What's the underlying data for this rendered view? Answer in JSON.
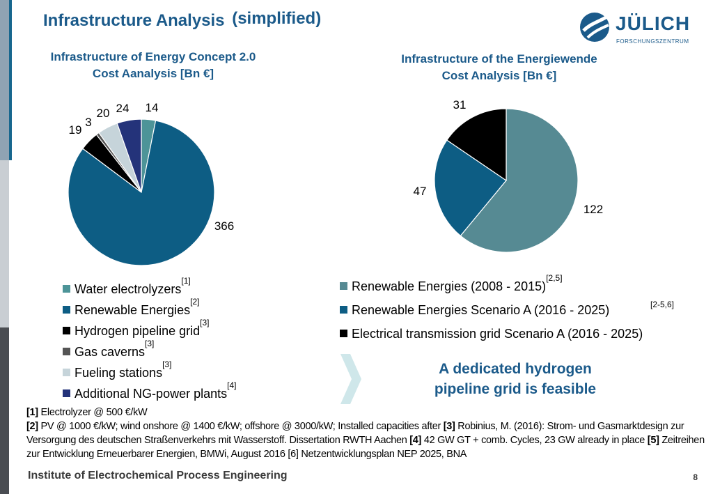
{
  "slide": {
    "title": "Infrastructure Analysis",
    "title_suffix": "(simplified)",
    "conclusion_line1": "A dedicated hydrogen",
    "conclusion_line2": "pipeline grid is feasible",
    "footer": "Institute of Electrochemical Process Engineering",
    "page_number": "8",
    "logo_text": "JÜLICH",
    "logo_sub": "FORSCHUNGSZENTRUM"
  },
  "footnotes": {
    "f1_ref": "[1]",
    "f1_text": " Electrolyzer @ 500 €/kW",
    "f2_ref": "[2]",
    "f2_text": " PV @ 1000 €/kW; wind onshore @ 1400 €/kW; offshore @ 3000/kW; Installed capacities after ",
    "f3_ref": "[3]",
    "f3_text": " Robinius, M. (2016): Strom- und Gasmarktdesign zur Versorgung des deutschen Straßenverkehrs mit Wasserstoff. Dissertation RWTH Aachen ",
    "f4_ref": "[4]",
    "f4_text": " 42 GW GT + comb. Cycles, 23 GW already in place ",
    "f5_ref": "[5]",
    "f5_text": " Zeitreihen zur Entwicklung Erneuerbarer Energien, BMWi, August 2016 [6] Netzentwicklungsplan NEP 2025, BNA"
  },
  "chart_data": [
    {
      "type": "pie",
      "title_line1": "Infrastructure of Energy Concept 2.0",
      "title_line2": "Cost Aanalysis  [Bn €]",
      "legend_position": "bottom",
      "series": [
        {
          "name": "Water electrolyzers",
          "ref": "[1]",
          "value": 14,
          "label": "14",
          "color": "#4d9498"
        },
        {
          "name": "Renewable Energies",
          "ref": "[2]",
          "value": 366,
          "label": "366",
          "color": "#0d5d84"
        },
        {
          "name": "Hydrogen pipeline grid",
          "ref": "[3]",
          "value": 19,
          "label": "19",
          "color": "#000000"
        },
        {
          "name": "Gas caverns",
          "ref": "[3]",
          "value": 3,
          "label": "3",
          "color": "#555555"
        },
        {
          "name": "Fueling stations",
          "ref": "[3]",
          "value": 20,
          "label": "20",
          "color": "#c6d4da"
        },
        {
          "name": "Additional NG-power plants",
          "ref": "[4]",
          "value": 24,
          "label": "24",
          "color": "#24337a"
        }
      ]
    },
    {
      "type": "pie",
      "title_line1": "Infrastructure of the Energiewende",
      "title_line2": "Cost Analysis [Bn €]",
      "legend_position": "bottom",
      "series": [
        {
          "name": "Renewable Energies (2008 - 2015)",
          "ref": "[2,5]",
          "value": 122,
          "label": "122",
          "color": "#568a93"
        },
        {
          "name": "Renewable Energies Scenario A (2016 - 2025)",
          "ref": "[2-5,6]",
          "value": 47,
          "label": "47",
          "color": "#0d5d84"
        },
        {
          "name": "Electrical transmission grid Scenario A (2016 - 2025)",
          "ref": "",
          "value": 31,
          "label": "31",
          "color": "#000000"
        }
      ]
    }
  ]
}
